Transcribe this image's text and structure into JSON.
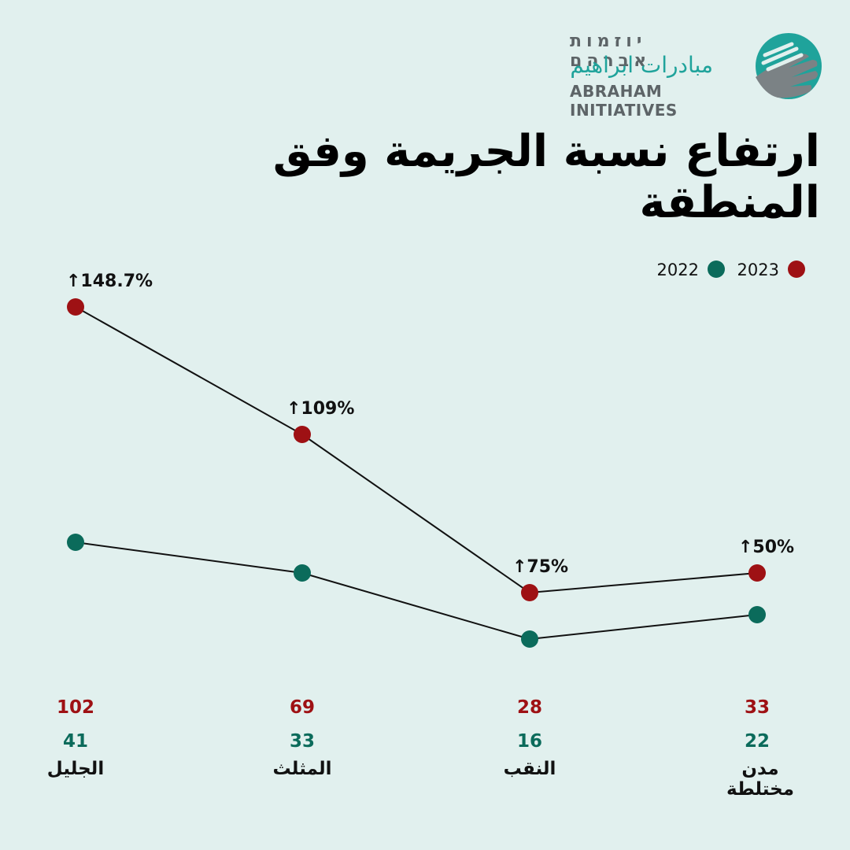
{
  "logo": {
    "hebrew": "יוזמות אברהם",
    "arabic": "مبادرات ابراهيم",
    "english": "ABRAHAM INITIATIVES"
  },
  "title": "ارتفاع نسبة الجريمة وفق المنطقة",
  "colors": {
    "background": "#e1f0ee",
    "series_2023": "#9e1114",
    "series_2022": "#0b6b5b",
    "line": "#111111"
  },
  "chart_data": {
    "type": "line",
    "categories": [
      "الجليل",
      "المثلث",
      "النقب",
      "مدن مختلطة"
    ],
    "category_lines": [
      [
        "الجليل"
      ],
      [
        "المثلث"
      ],
      [
        "النقب"
      ],
      [
        "مدن",
        "مختلطة"
      ]
    ],
    "series": [
      {
        "name": "2023",
        "values": [
          102,
          69,
          28,
          33
        ],
        "color": "#9e1114"
      },
      {
        "name": "2022",
        "values": [
          41,
          33,
          16,
          22
        ],
        "color": "#0b6b5b"
      }
    ],
    "annotations": [
      "↑148.7%",
      "↑109%",
      "↑75%",
      "↑50%"
    ],
    "legend": [
      {
        "label": "2023",
        "color": "#9e1114"
      },
      {
        "label": "2022",
        "color": "#0b6b5b"
      }
    ],
    "legend_position": "top-right",
    "axes_visible": false,
    "grid": false
  }
}
